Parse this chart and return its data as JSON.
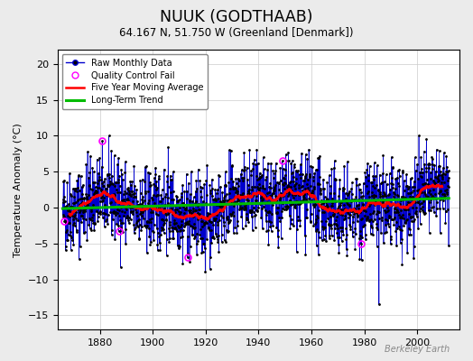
{
  "title": "NUUK (GODTHAAB)",
  "subtitle": "64.167 N, 51.750 W (Greenland [Denmark])",
  "ylabel": "Temperature Anomaly (°C)",
  "watermark": "Berkeley Earth",
  "ylim": [
    -17,
    22
  ],
  "yticks": [
    -15,
    -10,
    -5,
    0,
    5,
    10,
    15,
    20
  ],
  "xlim": [
    1864,
    2016
  ],
  "xticks": [
    1880,
    1900,
    1920,
    1940,
    1960,
    1980,
    2000
  ],
  "start_year": 1866,
  "end_year": 2012,
  "bg_color": "#ebebeb",
  "plot_bg_color": "#ffffff",
  "raw_line_color": "#0000cc",
  "raw_dot_color": "#000000",
  "qc_fail_color": "#ff00ff",
  "moving_avg_color": "#ff0000",
  "trend_color": "#00bb00",
  "legend_raw": "Raw Monthly Data",
  "legend_qc": "Quality Control Fail",
  "legend_ma": "Five Year Moving Average",
  "legend_trend": "Long-Term Trend",
  "grid_color": "#cccccc"
}
